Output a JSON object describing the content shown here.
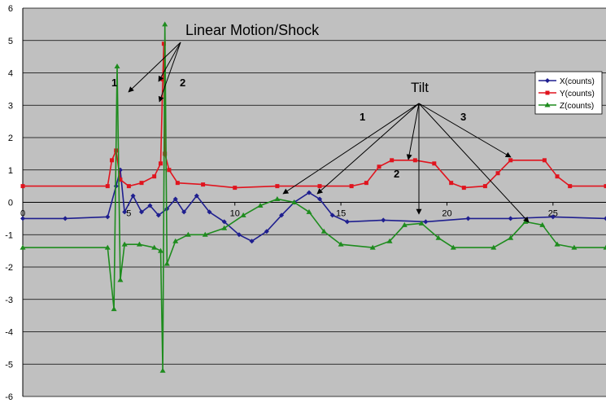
{
  "chart_data": {
    "type": "line",
    "title": "",
    "xlabel": "",
    "ylabel": "",
    "xlim": [
      0,
      27.5
    ],
    "ylim": [
      -6,
      6
    ],
    "grid": true,
    "legend_position": "right",
    "x_ticks": [
      0,
      5,
      10,
      15,
      20,
      25
    ],
    "y_ticks": [
      6,
      5,
      4,
      3,
      2,
      1,
      0,
      -1,
      -2,
      -3,
      -4,
      -5,
      -6
    ],
    "series": [
      {
        "name": "X(counts)",
        "color": "#1f1f8f",
        "marker": "diamond",
        "points": [
          [
            0,
            -0.5
          ],
          [
            2,
            -0.5
          ],
          [
            4,
            -0.45
          ],
          [
            4.4,
            0.5
          ],
          [
            4.6,
            1.0
          ],
          [
            4.8,
            -0.3
          ],
          [
            5.2,
            0.2
          ],
          [
            5.6,
            -0.3
          ],
          [
            6.0,
            -0.1
          ],
          [
            6.4,
            -0.4
          ],
          [
            6.8,
            -0.2
          ],
          [
            7.2,
            0.1
          ],
          [
            7.6,
            -0.3
          ],
          [
            8.2,
            0.2
          ],
          [
            8.8,
            -0.3
          ],
          [
            9.5,
            -0.6
          ],
          [
            10.2,
            -1.0
          ],
          [
            10.8,
            -1.2
          ],
          [
            11.5,
            -0.9
          ],
          [
            12.2,
            -0.4
          ],
          [
            12.8,
            0.0
          ],
          [
            13.5,
            0.3
          ],
          [
            14.0,
            0.1
          ],
          [
            14.6,
            -0.4
          ],
          [
            15.3,
            -0.6
          ],
          [
            17,
            -0.55
          ],
          [
            19,
            -0.6
          ],
          [
            21,
            -0.5
          ],
          [
            23,
            -0.5
          ],
          [
            25,
            -0.45
          ],
          [
            27.5,
            -0.5
          ]
        ]
      },
      {
        "name": "Y(counts)",
        "color": "#e0141e",
        "marker": "square",
        "points": [
          [
            0,
            0.5
          ],
          [
            4,
            0.5
          ],
          [
            4.2,
            1.3
          ],
          [
            4.4,
            1.6
          ],
          [
            4.6,
            0.7
          ],
          [
            5.0,
            0.5
          ],
          [
            5.6,
            0.6
          ],
          [
            6.2,
            0.8
          ],
          [
            6.5,
            1.2
          ],
          [
            6.6,
            3.8
          ],
          [
            6.65,
            4.9
          ],
          [
            6.7,
            1.5
          ],
          [
            6.9,
            1.0
          ],
          [
            7.3,
            0.6
          ],
          [
            8.5,
            0.55
          ],
          [
            10,
            0.45
          ],
          [
            12,
            0.5
          ],
          [
            14,
            0.5
          ],
          [
            15.5,
            0.5
          ],
          [
            16.2,
            0.6
          ],
          [
            16.8,
            1.1
          ],
          [
            17.4,
            1.3
          ],
          [
            18.5,
            1.3
          ],
          [
            19.4,
            1.2
          ],
          [
            20.2,
            0.6
          ],
          [
            20.8,
            0.45
          ],
          [
            21.8,
            0.5
          ],
          [
            22.4,
            0.9
          ],
          [
            23.0,
            1.3
          ],
          [
            24.6,
            1.3
          ],
          [
            25.2,
            0.8
          ],
          [
            25.8,
            0.5
          ],
          [
            27.5,
            0.5
          ]
        ]
      },
      {
        "name": "Z(counts)",
        "color": "#1e8c1e",
        "marker": "triangle",
        "points": [
          [
            0,
            -1.4
          ],
          [
            4,
            -1.4
          ],
          [
            4.3,
            -3.3
          ],
          [
            4.45,
            4.2
          ],
          [
            4.6,
            -2.4
          ],
          [
            4.8,
            -1.3
          ],
          [
            5.5,
            -1.3
          ],
          [
            6.2,
            -1.4
          ],
          [
            6.5,
            -1.5
          ],
          [
            6.6,
            -5.2
          ],
          [
            6.7,
            5.5
          ],
          [
            6.8,
            -1.9
          ],
          [
            7.2,
            -1.2
          ],
          [
            7.8,
            -1.0
          ],
          [
            8.6,
            -1.0
          ],
          [
            9.5,
            -0.8
          ],
          [
            10.4,
            -0.4
          ],
          [
            11.2,
            -0.1
          ],
          [
            12.0,
            0.1
          ],
          [
            12.8,
            0.0
          ],
          [
            13.5,
            -0.3
          ],
          [
            14.2,
            -0.9
          ],
          [
            15.0,
            -1.3
          ],
          [
            16.5,
            -1.4
          ],
          [
            17.3,
            -1.2
          ],
          [
            18.0,
            -0.7
          ],
          [
            18.8,
            -0.65
          ],
          [
            19.6,
            -1.1
          ],
          [
            20.3,
            -1.4
          ],
          [
            22.2,
            -1.4
          ],
          [
            23.0,
            -1.1
          ],
          [
            23.7,
            -0.6
          ],
          [
            24.5,
            -0.7
          ],
          [
            25.2,
            -1.3
          ],
          [
            26.0,
            -1.4
          ],
          [
            27.5,
            -1.4
          ]
        ]
      }
    ],
    "annotations": {
      "linear_motion": {
        "text": "Linear Motion/Shock",
        "label_1": "1",
        "label_2": "2"
      },
      "tilt": {
        "text": "Tilt",
        "label_1": "1",
        "label_2": "2",
        "label_3": "3"
      }
    }
  }
}
